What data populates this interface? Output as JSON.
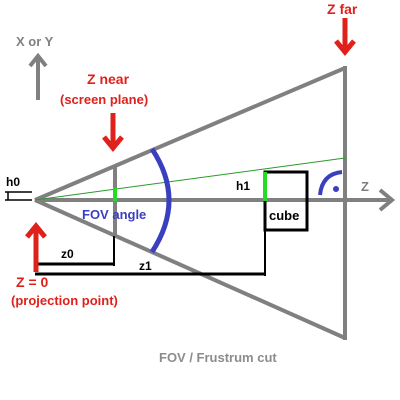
{
  "labels": {
    "axis_xy": "X or Y",
    "z_far": "Z far",
    "z_near_line1": "Z near",
    "z_near_line2": "(screen plane)",
    "h0": "h0",
    "h1": "h1",
    "z_axis": "Z",
    "fov_angle": "FOV angle",
    "cube": "cube",
    "z0": "z0",
    "z1": "z1",
    "z_zero_line1": "Z = 0",
    "z_zero_line2": "(projection point)",
    "caption": "FOV / Frustrum cut"
  },
  "colors": {
    "frustum_gray": "#808080",
    "red_label": "#e0211b",
    "blue_arc": "#3a3fbf",
    "green_mark": "#22dd22",
    "green_ray": "#2a9a2a",
    "black": "#000000",
    "caption_gray": "#8c8c8c"
  }
}
